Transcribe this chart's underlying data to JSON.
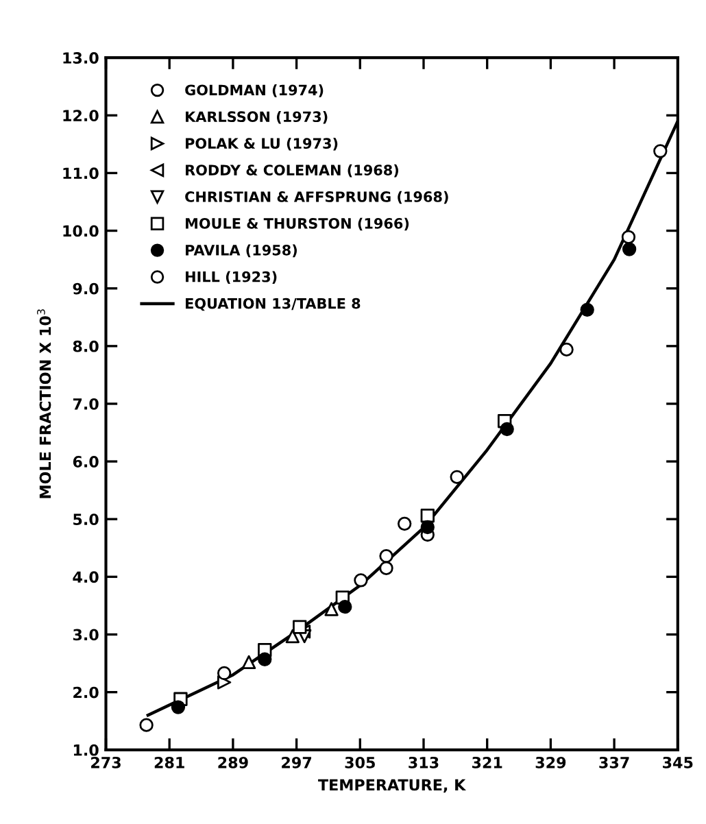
{
  "chart_data": {
    "type": "scatter",
    "xlabel": "TEMPERATURE, K",
    "ylabel": "MOLE FRACTION X 10$^{3}$",
    "xlim": [
      273,
      345
    ],
    "xticks": [
      273,
      281,
      289,
      297,
      305,
      313,
      321,
      329,
      337,
      345
    ],
    "ylim": [
      1.0,
      13.0
    ],
    "yticks": [
      {
        "value": 1,
        "label": "1.0"
      },
      {
        "value": 2,
        "label": "2.0"
      },
      {
        "value": 3,
        "label": "3.0"
      },
      {
        "value": 4,
        "label": "4.0"
      },
      {
        "value": 5,
        "label": "5.0"
      },
      {
        "value": 6,
        "label": "6.0"
      },
      {
        "value": 7,
        "label": "7.0"
      },
      {
        "value": 8,
        "label": "8.0"
      },
      {
        "value": 9,
        "label": "9.0"
      },
      {
        "value": 10,
        "label": "10.0"
      },
      {
        "value": 11,
        "label": "11.0"
      },
      {
        "value": 12,
        "label": "12.0"
      },
      {
        "value": 13,
        "label": "13.0"
      }
    ],
    "grid": false,
    "legend": "top left",
    "series": [
      {
        "name": "GOLDMAN (1974)",
        "color": "#ffffff",
        "marker": "circle",
        "x": [
          305.1,
          308.3,
          308.3,
          313.5,
          317.2,
          331.0,
          338.8,
          342.8
        ],
        "values": [
          3.94,
          4.36,
          4.15,
          4.73,
          5.73,
          7.94,
          9.89,
          11.38
        ]
      },
      {
        "name": "KARLSSON (1973)",
        "color": "#ffffff",
        "marker": "triangle",
        "x": [
          291.0,
          296.5,
          301.4
        ],
        "values": [
          2.52,
          2.97,
          3.44
        ]
      },
      {
        "name": "POLAK & LU (1973)",
        "color": "#ffffff",
        "marker": "triangle_right",
        "x": [
          287.9
        ],
        "values": [
          2.17
        ]
      },
      {
        "name": "RODDY & COLEMAN (1968)",
        "color": "#ffffff",
        "marker": "triangle_left",
        "x": [
          297.9
        ],
        "values": [
          3.05
        ]
      },
      {
        "name": "CHRISTIAN & AFFSPRUNG (1968)",
        "color": "#ffffff",
        "marker": "triangle_down",
        "x": [
          298.0
        ],
        "values": [
          2.97
        ]
      },
      {
        "name": "MOULE & THURSTON (1966)",
        "color": "#ffffff",
        "marker": "square",
        "x": [
          282.4,
          293.0,
          297.4,
          302.8,
          313.5,
          323.2
        ],
        "values": [
          1.88,
          2.73,
          3.13,
          3.64,
          5.06,
          6.7
        ]
      },
      {
        "name": "PAVILA (1958)",
        "color": "#000000",
        "marker": "circle",
        "x": [
          282.1,
          293.0,
          303.1,
          313.5,
          323.5,
          333.6,
          338.9
        ],
        "values": [
          1.74,
          2.57,
          3.48,
          4.86,
          6.56,
          8.63,
          9.68
        ]
      },
      {
        "name": "HILL (1923)",
        "color": "#ffffff",
        "marker": "circle",
        "x": [
          278.1,
          287.9,
          310.6
        ],
        "values": [
          1.43,
          2.33,
          4.92
        ]
      },
      {
        "name": "EQUATION 13/TABLE 8",
        "type": "line",
        "color": "#000000",
        "marker": "none",
        "line_style": "solid",
        "x": [
          278.3,
          289,
          297,
          305,
          313,
          321,
          329,
          337,
          345
        ],
        "values": [
          1.6,
          2.3,
          3.05,
          3.85,
          4.85,
          6.2,
          7.7,
          9.5,
          11.9
        ]
      }
    ]
  }
}
